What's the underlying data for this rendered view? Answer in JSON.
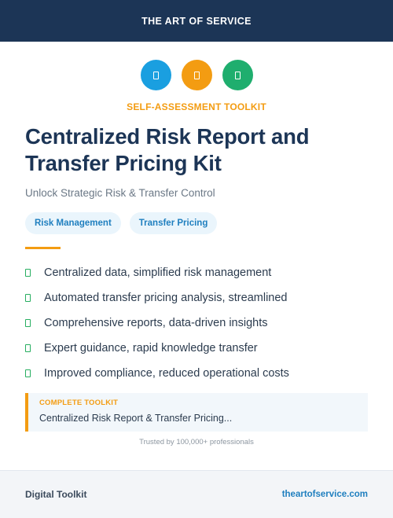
{
  "header": {
    "brand": "THE ART OF SERVICE",
    "color": "#1c3556"
  },
  "icons": [
    {
      "name": "info-icon",
      "color": "#1a9fe0"
    },
    {
      "name": "tools-icon",
      "color": "#f39c12"
    },
    {
      "name": "chart-icon",
      "color": "#1fae6e"
    }
  ],
  "kicker": "SELF-ASSESSMENT TOOLKIT",
  "title": "Centralized Risk Report and Transfer Pricing Kit",
  "subtitle": "Unlock Strategic Risk & Transfer Control",
  "tags": [
    "Risk Management",
    "Transfer Pricing"
  ],
  "features": [
    "Centralized data, simplified risk management",
    "Automated transfer pricing analysis, streamlined",
    "Comprehensive reports, data-driven insights",
    "Expert guidance, rapid knowledge transfer",
    "Improved compliance, reduced operational costs"
  ],
  "toolkit": {
    "label": "COMPLETE TOOLKIT",
    "value": "Centralized Risk Report & Transfer Pricing..."
  },
  "trusted": "Trusted by 100,000+ professionals",
  "footer": {
    "left": "Digital Toolkit",
    "right": "theartofservice.com"
  },
  "colors": {
    "accent": "#f39c12",
    "link": "#1f7fbf",
    "check": "#27ae60"
  }
}
